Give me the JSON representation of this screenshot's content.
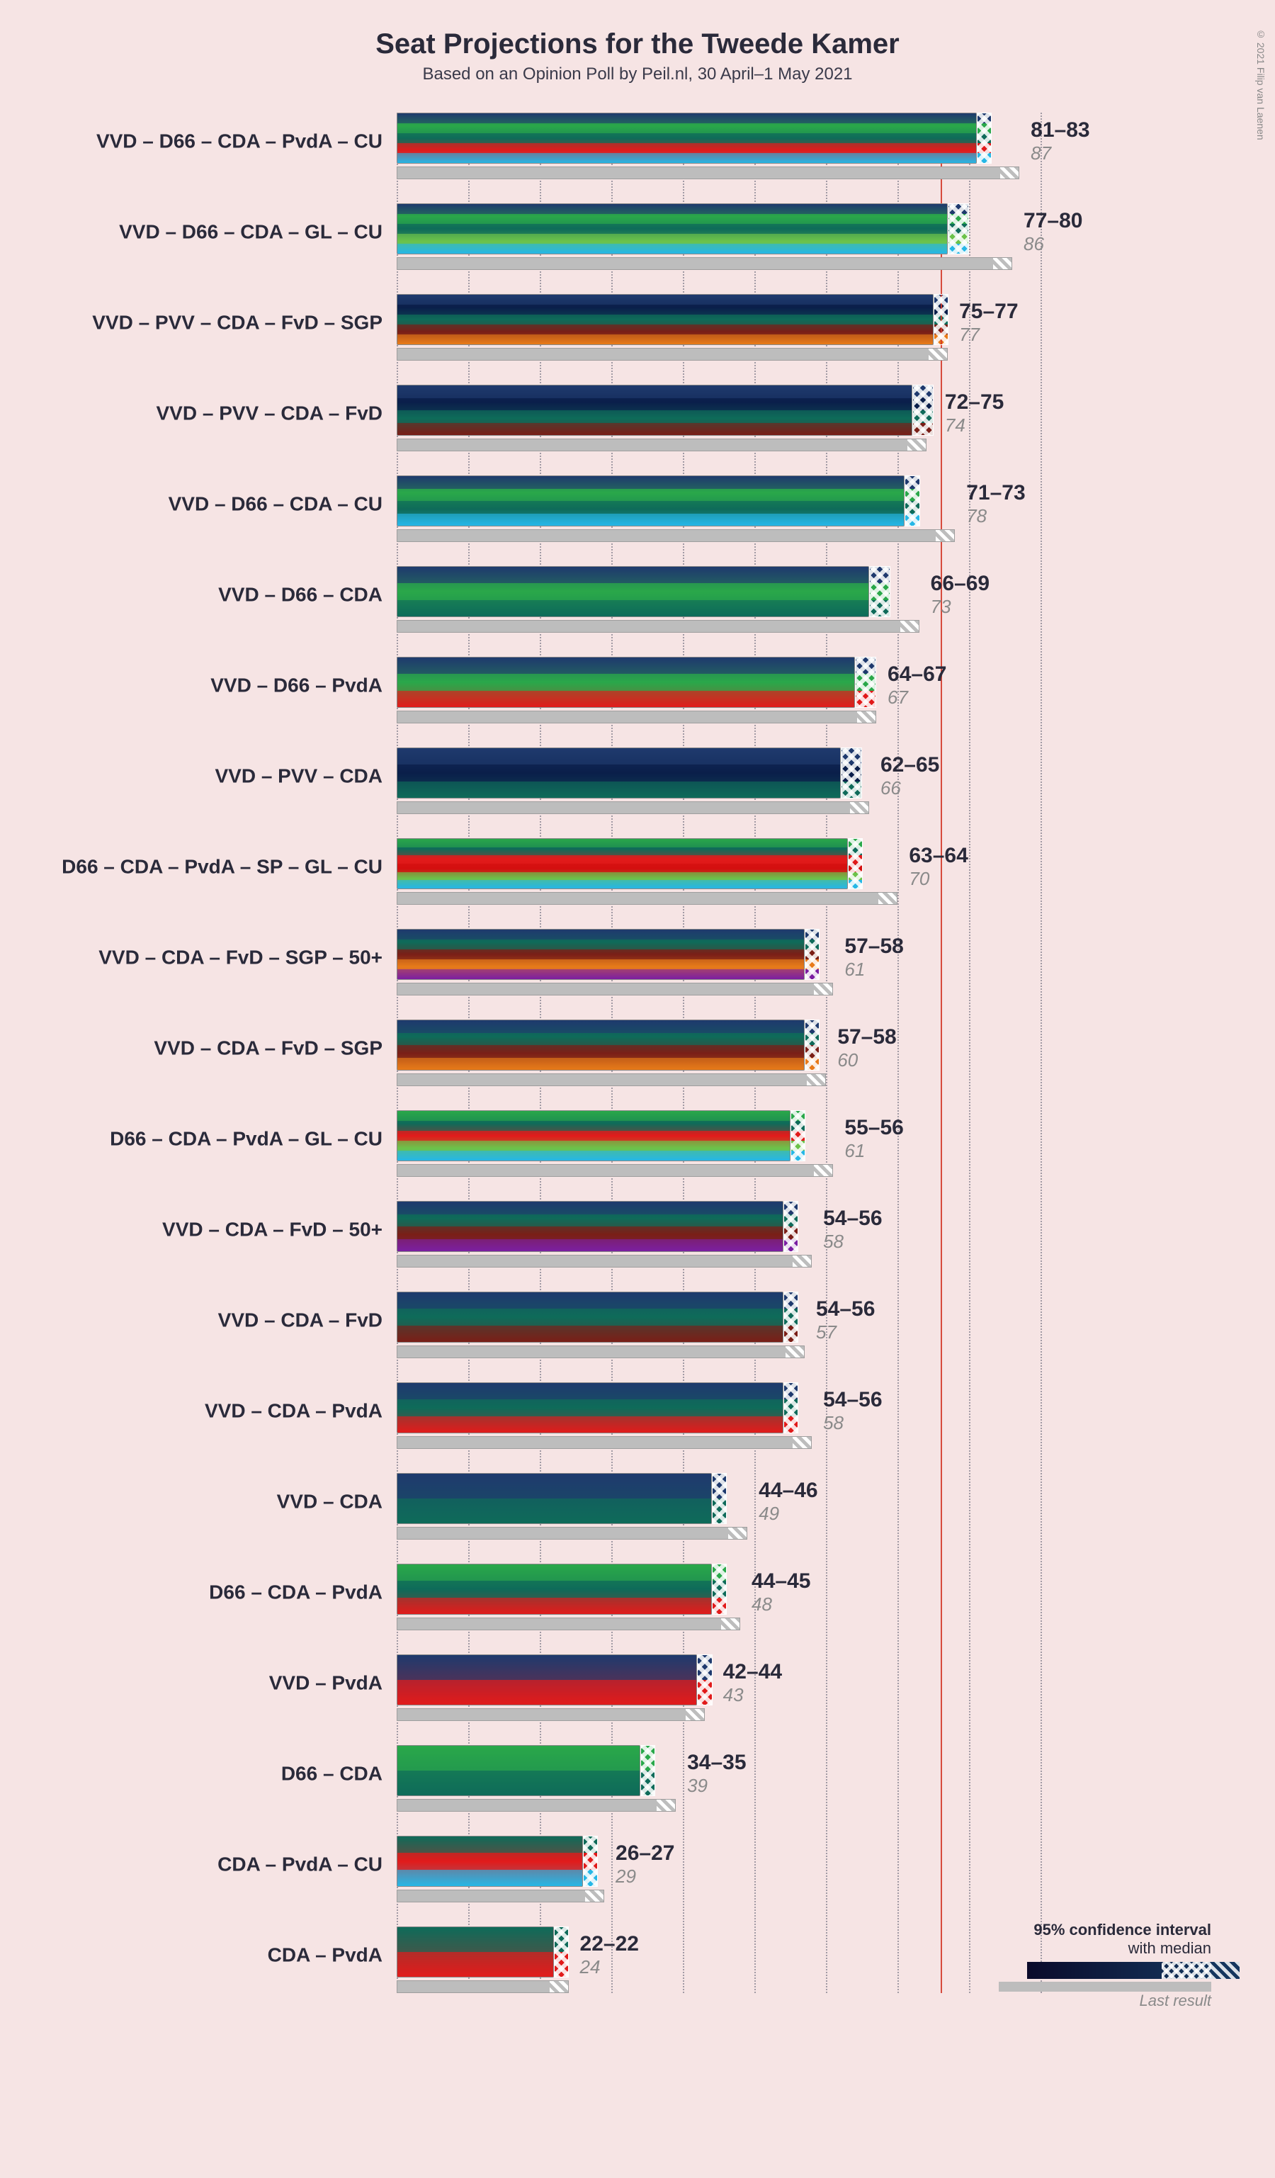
{
  "title": "Seat Projections for the Tweede Kamer",
  "subtitle": "Based on an Opinion Poll by Peil.nl, 30 April–1 May 2021",
  "copyright": "© 2021 Filip van Laenen",
  "background_color": "#f6e4e4",
  "xaxis": {
    "min": 0,
    "max": 95,
    "tick_step": 10,
    "majority": 76
  },
  "party_colors": {
    "VVD": "#1f3a6e",
    "D66": "#2aa84a",
    "CDA": "#0f6b5a",
    "PvdA": "#e11b1b",
    "CU": "#27b7e6",
    "GL": "#6cc24a",
    "PVV": "#0b1f4b",
    "FvD": "#7a1f17",
    "SGP": "#e87b1a",
    "SP": "#d40f0f",
    "50+": "#7b1fa2"
  },
  "typography": {
    "title_fontsize": 40,
    "subtitle_fontsize": 24,
    "label_fontsize": 28,
    "value_fontsize": 30,
    "last_fontsize": 26
  },
  "legend": {
    "title1": "95% confidence interval",
    "title2": "with median",
    "last_label": "Last result"
  },
  "rows": [
    {
      "label": "VVD – D66 – CDA – PvdA – CU",
      "parties": [
        "VVD",
        "D66",
        "CDA",
        "PvdA",
        "CU"
      ],
      "lo": 81,
      "hi": 83,
      "last": 87
    },
    {
      "label": "VVD – D66 – CDA – GL – CU",
      "parties": [
        "VVD",
        "D66",
        "CDA",
        "GL",
        "CU"
      ],
      "lo": 77,
      "hi": 80,
      "last": 86
    },
    {
      "label": "VVD – PVV – CDA – FvD – SGP",
      "parties": [
        "VVD",
        "PVV",
        "CDA",
        "FvD",
        "SGP"
      ],
      "lo": 75,
      "hi": 77,
      "last": 77
    },
    {
      "label": "VVD – PVV – CDA – FvD",
      "parties": [
        "VVD",
        "PVV",
        "CDA",
        "FvD"
      ],
      "lo": 72,
      "hi": 75,
      "last": 74
    },
    {
      "label": "VVD – D66 – CDA – CU",
      "parties": [
        "VVD",
        "D66",
        "CDA",
        "CU"
      ],
      "lo": 71,
      "hi": 73,
      "last": 78
    },
    {
      "label": "VVD – D66 – CDA",
      "parties": [
        "VVD",
        "D66",
        "CDA"
      ],
      "lo": 66,
      "hi": 69,
      "last": 73
    },
    {
      "label": "VVD – D66 – PvdA",
      "parties": [
        "VVD",
        "D66",
        "PvdA"
      ],
      "lo": 64,
      "hi": 67,
      "last": 67
    },
    {
      "label": "VVD – PVV – CDA",
      "parties": [
        "VVD",
        "PVV",
        "CDA"
      ],
      "lo": 62,
      "hi": 65,
      "last": 66
    },
    {
      "label": "D66 – CDA – PvdA – SP – GL – CU",
      "parties": [
        "D66",
        "CDA",
        "PvdA",
        "SP",
        "GL",
        "CU"
      ],
      "lo": 63,
      "hi": 64,
      "last": 70
    },
    {
      "label": "VVD – CDA – FvD – SGP – 50+",
      "parties": [
        "VVD",
        "CDA",
        "FvD",
        "SGP",
        "50+"
      ],
      "lo": 57,
      "hi": 58,
      "last": 61
    },
    {
      "label": "VVD – CDA – FvD – SGP",
      "parties": [
        "VVD",
        "CDA",
        "FvD",
        "SGP"
      ],
      "lo": 57,
      "hi": 58,
      "last": 60
    },
    {
      "label": "D66 – CDA – PvdA – GL – CU",
      "parties": [
        "D66",
        "CDA",
        "PvdA",
        "GL",
        "CU"
      ],
      "lo": 55,
      "hi": 56,
      "last": 61
    },
    {
      "label": "VVD – CDA – FvD – 50+",
      "parties": [
        "VVD",
        "CDA",
        "FvD",
        "50+"
      ],
      "lo": 54,
      "hi": 56,
      "last": 58
    },
    {
      "label": "VVD – CDA – FvD",
      "parties": [
        "VVD",
        "CDA",
        "FvD"
      ],
      "lo": 54,
      "hi": 56,
      "last": 57
    },
    {
      "label": "VVD – CDA – PvdA",
      "parties": [
        "VVD",
        "CDA",
        "PvdA"
      ],
      "lo": 54,
      "hi": 56,
      "last": 58
    },
    {
      "label": "VVD – CDA",
      "parties": [
        "VVD",
        "CDA"
      ],
      "lo": 44,
      "hi": 46,
      "last": 49
    },
    {
      "label": "D66 – CDA – PvdA",
      "parties": [
        "D66",
        "CDA",
        "PvdA"
      ],
      "lo": 44,
      "hi": 45,
      "last": 48
    },
    {
      "label": "VVD – PvdA",
      "parties": [
        "VVD",
        "PvdA"
      ],
      "lo": 42,
      "hi": 44,
      "last": 43
    },
    {
      "label": "D66 – CDA",
      "parties": [
        "D66",
        "CDA"
      ],
      "lo": 34,
      "hi": 35,
      "last": 39
    },
    {
      "label": "CDA – PvdA – CU",
      "parties": [
        "CDA",
        "PvdA",
        "CU"
      ],
      "lo": 26,
      "hi": 27,
      "last": 29
    },
    {
      "label": "CDA – PvdA",
      "parties": [
        "CDA",
        "PvdA"
      ],
      "lo": 22,
      "hi": 22,
      "last": 24
    }
  ]
}
